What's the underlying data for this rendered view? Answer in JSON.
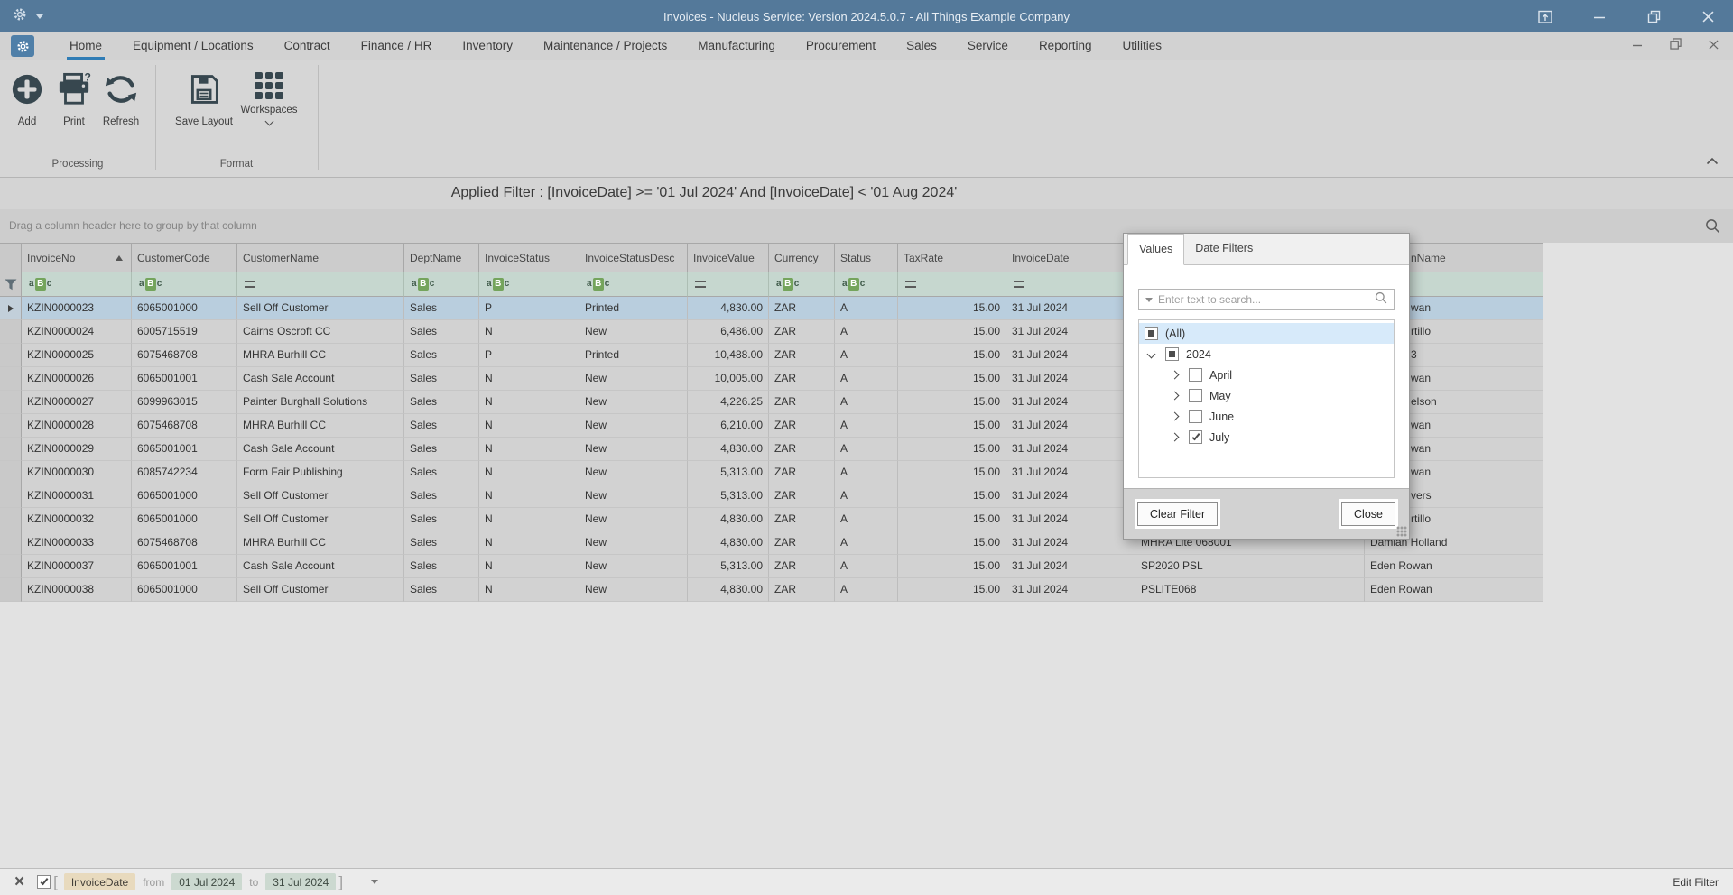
{
  "window": {
    "title": "Invoices - Nucleus Service: Version 2024.5.0.7 - All Things Example Company"
  },
  "colors": {
    "titlebar": "#54799a",
    "tab_underline": "#2f7cb5",
    "ribbon_icon": "#37474f",
    "selected_row": "#b9cede",
    "filter_row": "#c6d7cf",
    "field_chip": "#e8dabe",
    "value_chip": "#ccd9d0"
  },
  "ribbon": {
    "tabs": [
      "Home",
      "Equipment / Locations",
      "Contract",
      "Finance / HR",
      "Inventory",
      "Maintenance / Projects",
      "Manufacturing",
      "Procurement",
      "Sales",
      "Service",
      "Reporting",
      "Utilities"
    ],
    "active_tab": "Home",
    "buttons": {
      "add": "Add",
      "print": "Print",
      "refresh": "Refresh",
      "save_layout": "Save Layout",
      "workspaces": "Workspaces"
    },
    "group_labels": {
      "processing": "Processing",
      "format": "Format"
    }
  },
  "applied_filter": "Applied Filter : [InvoiceDate] >= '01 Jul 2024' And [InvoiceDate] < '01 Aug 2024'",
  "grid": {
    "group_hint": "Drag a column header here to group by that column",
    "columns": [
      {
        "label": "",
        "name": "indicator"
      },
      {
        "label": "InvoiceNo",
        "sort": "asc"
      },
      {
        "label": "CustomerCode"
      },
      {
        "label": "CustomerName"
      },
      {
        "label": "DeptName"
      },
      {
        "label": "InvoiceStatus"
      },
      {
        "label": "InvoiceStatusDesc"
      },
      {
        "label": "InvoiceValue"
      },
      {
        "label": "Currency"
      },
      {
        "label": "Status"
      },
      {
        "label": "TaxRate"
      },
      {
        "label": "InvoiceDate"
      },
      {
        "label": "",
        "name": "hidden-by-popup"
      },
      {
        "label": "nName",
        "partial": true
      }
    ],
    "filter_row": [
      "funnel",
      "abc",
      "abc",
      "eq",
      "abc",
      "abc",
      "abc",
      "eq",
      "abc",
      "abc",
      "eq",
      "eq",
      "none",
      "none"
    ],
    "rows": [
      {
        "invoice_no": "KZIN0000023",
        "customer_code": "6065001000",
        "customer_name": "Sell Off Customer",
        "dept_name": "Sales",
        "invoice_status": "P",
        "invoice_status_desc": "Printed",
        "invoice_value": "4,830.00",
        "currency": "ZAR",
        "status": "A",
        "tax_rate": "15.00",
        "invoice_date": "31 Jul 2024",
        "extra": "",
        "person": "wan",
        "person_partial": true,
        "selected": true
      },
      {
        "invoice_no": "KZIN0000024",
        "customer_code": "6005715519",
        "customer_name": "Cairns Oscroft CC",
        "dept_name": "Sales",
        "invoice_status": "N",
        "invoice_status_desc": "New",
        "invoice_value": "6,486.00",
        "currency": "ZAR",
        "status": "A",
        "tax_rate": "15.00",
        "invoice_date": "31 Jul 2024",
        "extra": "",
        "person": "rtillo",
        "person_partial": true
      },
      {
        "invoice_no": "KZIN0000025",
        "customer_code": "6075468708",
        "customer_name": "MHRA Burhill CC",
        "dept_name": "Sales",
        "invoice_status": "P",
        "invoice_status_desc": "Printed",
        "invoice_value": "10,488.00",
        "currency": "ZAR",
        "status": "A",
        "tax_rate": "15.00",
        "invoice_date": "31 Jul 2024",
        "extra": "",
        "person": "3",
        "person_partial": true
      },
      {
        "invoice_no": "KZIN0000026",
        "customer_code": "6065001001",
        "customer_name": "Cash Sale Account",
        "dept_name": "Sales",
        "invoice_status": "N",
        "invoice_status_desc": "New",
        "invoice_value": "10,005.00",
        "currency": "ZAR",
        "status": "A",
        "tax_rate": "15.00",
        "invoice_date": "31 Jul 2024",
        "extra": "",
        "person": "wan",
        "person_partial": true
      },
      {
        "invoice_no": "KZIN0000027",
        "customer_code": "6099963015",
        "customer_name": "Painter Burghall Solutions",
        "dept_name": "Sales",
        "invoice_status": "N",
        "invoice_status_desc": "New",
        "invoice_value": "4,226.25",
        "currency": "ZAR",
        "status": "A",
        "tax_rate": "15.00",
        "invoice_date": "31 Jul 2024",
        "extra": "",
        "person": "elson",
        "person_partial": true
      },
      {
        "invoice_no": "KZIN0000028",
        "customer_code": "6075468708",
        "customer_name": "MHRA Burhill CC",
        "dept_name": "Sales",
        "invoice_status": "N",
        "invoice_status_desc": "New",
        "invoice_value": "6,210.00",
        "currency": "ZAR",
        "status": "A",
        "tax_rate": "15.00",
        "invoice_date": "31 Jul 2024",
        "extra": "",
        "person": "wan",
        "person_partial": true
      },
      {
        "invoice_no": "KZIN0000029",
        "customer_code": "6065001001",
        "customer_name": "Cash Sale Account",
        "dept_name": "Sales",
        "invoice_status": "N",
        "invoice_status_desc": "New",
        "invoice_value": "4,830.00",
        "currency": "ZAR",
        "status": "A",
        "tax_rate": "15.00",
        "invoice_date": "31 Jul 2024",
        "extra": "",
        "person": "wan",
        "person_partial": true
      },
      {
        "invoice_no": "KZIN0000030",
        "customer_code": "6085742234",
        "customer_name": "Form Fair Publishing",
        "dept_name": "Sales",
        "invoice_status": "N",
        "invoice_status_desc": "New",
        "invoice_value": "5,313.00",
        "currency": "ZAR",
        "status": "A",
        "tax_rate": "15.00",
        "invoice_date": "31 Jul 2024",
        "extra": "",
        "person": "wan",
        "person_partial": true
      },
      {
        "invoice_no": "KZIN0000031",
        "customer_code": "6065001000",
        "customer_name": "Sell Off Customer",
        "dept_name": "Sales",
        "invoice_status": "N",
        "invoice_status_desc": "New",
        "invoice_value": "5,313.00",
        "currency": "ZAR",
        "status": "A",
        "tax_rate": "15.00",
        "invoice_date": "31 Jul 2024",
        "extra": "",
        "person": "vers",
        "person_partial": true
      },
      {
        "invoice_no": "KZIN0000032",
        "customer_code": "6065001000",
        "customer_name": "Sell Off Customer",
        "dept_name": "Sales",
        "invoice_status": "N",
        "invoice_status_desc": "New",
        "invoice_value": "4,830.00",
        "currency": "ZAR",
        "status": "A",
        "tax_rate": "15.00",
        "invoice_date": "31 Jul 2024",
        "extra": "",
        "person": "rtillo",
        "person_partial": true
      },
      {
        "invoice_no": "KZIN0000033",
        "customer_code": "6075468708",
        "customer_name": "MHRA Burhill CC",
        "dept_name": "Sales",
        "invoice_status": "N",
        "invoice_status_desc": "New",
        "invoice_value": "4,830.00",
        "currency": "ZAR",
        "status": "A",
        "tax_rate": "15.00",
        "invoice_date": "31 Jul 2024",
        "extra": "MHRA Lite 068001",
        "person": "Damian Holland",
        "person_partial": false
      },
      {
        "invoice_no": "KZIN0000037",
        "customer_code": "6065001001",
        "customer_name": "Cash Sale Account",
        "dept_name": "Sales",
        "invoice_status": "N",
        "invoice_status_desc": "New",
        "invoice_value": "5,313.00",
        "currency": "ZAR",
        "status": "A",
        "tax_rate": "15.00",
        "invoice_date": "31 Jul 2024",
        "extra": "SP2020 PSL",
        "person": "Eden Rowan",
        "person_partial": false
      },
      {
        "invoice_no": "KZIN0000038",
        "customer_code": "6065001000",
        "customer_name": "Sell Off Customer",
        "dept_name": "Sales",
        "invoice_status": "N",
        "invoice_status_desc": "New",
        "invoice_value": "4,830.00",
        "currency": "ZAR",
        "status": "A",
        "tax_rate": "15.00",
        "invoice_date": "31 Jul 2024",
        "extra": "PSLITE068",
        "person": "Eden Rowan",
        "person_partial": false
      }
    ]
  },
  "filter_popup": {
    "tabs": [
      "Values",
      "Date Filters"
    ],
    "active_tab": "Values",
    "search_placeholder": "Enter text to search...",
    "tree": [
      {
        "label": "(All)",
        "level": 0,
        "check": "indeterminate",
        "selected": true
      },
      {
        "label": "2024",
        "level": 1,
        "check": "indeterminate",
        "chevron": "down"
      },
      {
        "label": "April",
        "level": 2,
        "check": "off",
        "chevron": "right"
      },
      {
        "label": "May",
        "level": 2,
        "check": "off",
        "chevron": "right"
      },
      {
        "label": "June",
        "level": 2,
        "check": "off",
        "chevron": "right"
      },
      {
        "label": "July",
        "level": 2,
        "check": "on",
        "chevron": "right"
      }
    ],
    "clear_button": "Clear Filter",
    "close_button": "Close"
  },
  "filter_bar": {
    "checked": true,
    "field": "InvoiceDate",
    "from_label": "from",
    "from_value": "01 Jul 2024",
    "to_label": "to",
    "to_value": "31 Jul 2024",
    "edit_filter": "Edit Filter"
  }
}
